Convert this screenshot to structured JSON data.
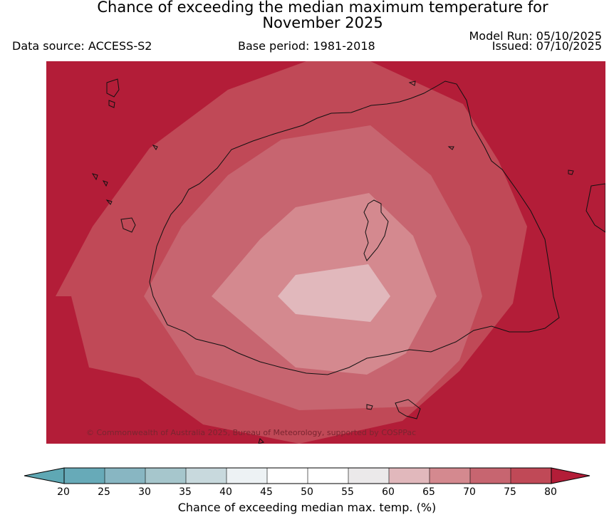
{
  "header": {
    "title_line1": "Chance of exceeding the median maximum temperature for",
    "title_line2": "November 2025",
    "data_source": "Data source: ACCESS-S2",
    "base_period": "Base period: 1981-2018",
    "model_run": "Model Run: 05/10/2025",
    "issued": "Issued: 07/10/2025"
  },
  "map": {
    "copyright": "© Commonwealth of Australia 2025, Bureau of Meteorology, supported by COSPPac",
    "region_shown": "Fiji",
    "field_levels_percent": [
      80,
      75,
      70,
      65,
      60
    ],
    "contour_band_colors": [
      "#b31d38",
      "#c04957",
      "#c76570",
      "#d4898f",
      "#e1b8bc"
    ]
  },
  "colorbar": {
    "label": "Chance of exceeding median max. temp. (%)",
    "ticks": [
      "20",
      "25",
      "30",
      "35",
      "40",
      "45",
      "50",
      "55",
      "60",
      "65",
      "70",
      "75",
      "80"
    ],
    "colors": {
      "below_20": "#5fa8b4",
      "20_25": "#67aab8",
      "25_30": "#88b6c2",
      "30_35": "#a6c6cc",
      "35_40": "#c8d9dd",
      "40_45": "#edf2f4",
      "45_50": "#ffffff",
      "50_55": "#ffffff",
      "55_60": "#ebe9ea",
      "60_65": "#e1b8bc",
      "65_70": "#d4898f",
      "70_75": "#c76570",
      "75_80": "#c04957",
      "above_80": "#b31d38"
    }
  }
}
